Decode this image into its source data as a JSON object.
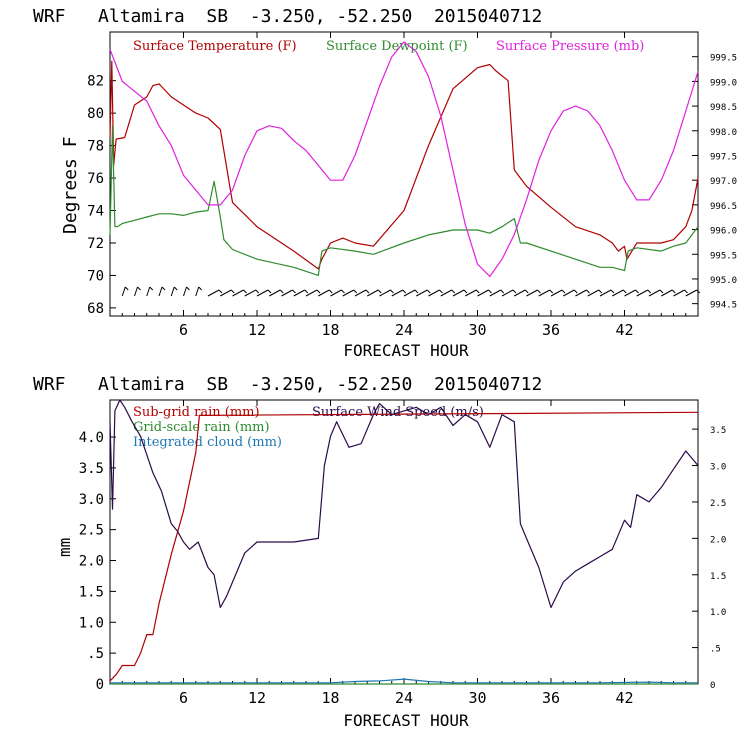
{
  "colors": {
    "temperature": "#b00000",
    "dewpoint": "#2e8b2e",
    "pressure": "#e020e0",
    "subgrid_rain": "#b00000",
    "grid_rain": "#2e8b2e",
    "cloud": "#1f77b4",
    "wind": "#2a0a4a"
  },
  "chart_data": [
    {
      "type": "line",
      "title": "WRF   Altamira  SB  -3.250, -52.250  2015040712",
      "xlabel": "FORECAST HOUR",
      "ylabel": "Degrees F",
      "xlim": [
        0,
        48
      ],
      "ylim": [
        67.5,
        85
      ],
      "xticks": [
        "6",
        "12",
        "18",
        "24",
        "30",
        "36",
        "42"
      ],
      "yticks": [
        "68",
        "70",
        "72",
        "74",
        "76",
        "78",
        "80",
        "82"
      ],
      "y2lim": [
        994.25,
        1000.0
      ],
      "y2ticks": [
        "994.5",
        "995.0",
        "995.5",
        "996.0",
        "996.5",
        "997.0",
        "997.5",
        "998.0",
        "998.5",
        "999.0",
        "999.5"
      ],
      "legend": [
        "Surface Temperature (F)",
        "Surface Dewpoint (F)",
        "Surface Pressure (mb)"
      ],
      "series": [
        {
          "name": "Surface Temperature (F)",
          "axis": "left",
          "x": [
            0,
            0.15,
            0.3,
            0.5,
            1.2,
            2,
            3,
            3.5,
            4,
            5,
            6,
            7,
            8,
            9,
            10,
            12,
            15,
            17,
            17.3,
            18,
            19,
            20,
            21.5,
            24,
            26,
            28,
            30,
            31,
            31.5,
            32.5,
            33,
            33.5,
            34,
            36,
            38,
            40,
            41,
            41.5,
            42,
            42.2,
            43,
            45,
            46,
            47,
            47.5,
            48
          ],
          "values": [
            78.5,
            83.2,
            76.8,
            78.4,
            78.5,
            80.5,
            81.0,
            81.7,
            81.8,
            81.0,
            80.5,
            80.0,
            79.7,
            79.0,
            74.5,
            73.0,
            71.5,
            70.4,
            71.0,
            72.0,
            72.3,
            72.0,
            71.8,
            74.0,
            78.0,
            81.5,
            82.8,
            83.0,
            82.6,
            82.0,
            76.5,
            76.0,
            75.5,
            74.2,
            73.0,
            72.5,
            72.0,
            71.5,
            71.8,
            71.0,
            72.0,
            72.0,
            72.2,
            73.0,
            74.0,
            76.0
          ]
        },
        {
          "name": "Surface Dewpoint (F)",
          "axis": "left",
          "x": [
            0,
            0.2,
            0.4,
            0.6,
            1,
            2,
            3,
            4,
            5,
            6,
            7,
            8,
            8.5,
            9,
            9.3,
            10,
            12,
            15,
            17,
            17.3,
            18,
            20,
            21.5,
            24,
            26,
            28,
            30,
            31,
            32,
            33,
            33.5,
            34,
            36,
            38,
            40,
            41,
            42,
            42.3,
            43,
            45,
            46,
            47,
            48
          ],
          "values": [
            72.5,
            79.2,
            73.0,
            73.0,
            73.2,
            73.4,
            73.6,
            73.8,
            73.8,
            73.7,
            73.9,
            74.0,
            75.8,
            73.6,
            72.2,
            71.6,
            71.0,
            70.5,
            70.0,
            71.5,
            71.7,
            71.5,
            71.3,
            72.0,
            72.5,
            72.8,
            72.8,
            72.6,
            73.0,
            73.5,
            72.0,
            72.0,
            71.5,
            71.0,
            70.5,
            70.5,
            70.3,
            71.5,
            71.7,
            71.5,
            71.8,
            72.0,
            73.0
          ]
        },
        {
          "name": "Surface Pressure (mb)",
          "axis": "right",
          "x": [
            0,
            1,
            2,
            3,
            4,
            5,
            6,
            7,
            8,
            9,
            10,
            11,
            12,
            13,
            14,
            15,
            16,
            17,
            18,
            19,
            20,
            21,
            22,
            23,
            24,
            25,
            26,
            27,
            28,
            29,
            30,
            31,
            32,
            33,
            34,
            35,
            36,
            37,
            38,
            39,
            40,
            41,
            42,
            43,
            44,
            45,
            46,
            47,
            48
          ],
          "values": [
            999.65,
            999.0,
            998.8,
            998.6,
            998.1,
            997.7,
            997.1,
            996.8,
            996.5,
            996.5,
            996.8,
            997.5,
            998.0,
            998.1,
            998.05,
            997.8,
            997.6,
            997.3,
            997.0,
            997.0,
            997.5,
            998.2,
            998.9,
            999.5,
            999.8,
            999.6,
            999.1,
            998.3,
            997.2,
            996.1,
            995.3,
            995.05,
            995.4,
            995.9,
            996.6,
            997.4,
            998.0,
            998.4,
            998.5,
            998.4,
            998.1,
            997.6,
            997.0,
            996.6,
            996.6,
            997.0,
            997.6,
            998.4,
            999.2
          ]
        }
      ]
    },
    {
      "type": "line",
      "title": "WRF   Altamira  SB  -3.250, -52.250  2015040712",
      "xlabel": "FORECAST HOUR",
      "ylabel": "mm",
      "xlim": [
        0,
        48
      ],
      "ylim": [
        0,
        4.6
      ],
      "xticks": [
        "6",
        "12",
        "18",
        "24",
        "30",
        "36",
        "42"
      ],
      "yticks": [
        "0",
        ".5",
        "1.0",
        "1.5",
        "2.0",
        "2.5",
        "3.0",
        "3.5",
        "4.0"
      ],
      "y2lim": [
        0,
        3.9
      ],
      "y2ticks": [
        "0",
        ".5",
        "1.0",
        "1.5",
        "2.0",
        "2.5",
        "3.0",
        "3.5"
      ],
      "legend": [
        "Sub-grid rain (mm)",
        "Grid-scale rain (mm)",
        "Integrated cloud (mm)",
        "Surface Wind Speed (m/s)"
      ],
      "series": [
        {
          "name": "Sub-grid rain (mm)",
          "axis": "left",
          "x": [
            0,
            0.5,
            1,
            2,
            2.5,
            3,
            3.5,
            4,
            5,
            6,
            7,
            7.3,
            48
          ],
          "values": [
            0.05,
            0.15,
            0.3,
            0.3,
            0.5,
            0.8,
            0.8,
            1.3,
            2.1,
            2.8,
            3.75,
            4.35,
            4.4
          ]
        },
        {
          "name": "Grid-scale rain (mm)",
          "axis": "left",
          "x": [
            0,
            48
          ],
          "values": [
            0,
            0
          ]
        },
        {
          "name": "Integrated cloud (mm)",
          "axis": "left",
          "x": [
            0,
            18,
            20,
            22,
            24,
            26,
            28,
            30,
            40,
            44,
            46,
            48
          ],
          "values": [
            0.02,
            0.02,
            0.04,
            0.05,
            0.08,
            0.04,
            0.02,
            0.02,
            0.02,
            0.03,
            0.02,
            0.02
          ]
        },
        {
          "name": "Surface Wind Speed (m/s)",
          "axis": "right",
          "x": [
            0,
            0.2,
            0.4,
            0.8,
            1.2,
            1.8,
            2.5,
            3.5,
            4.2,
            5,
            5.5,
            6,
            6.5,
            7.2,
            8,
            8.5,
            9,
            9.5,
            11,
            12,
            15,
            17,
            17.5,
            18,
            18.5,
            19.5,
            20.5,
            21.5,
            22,
            23,
            24,
            25,
            26,
            27,
            28,
            29,
            30,
            31,
            32,
            33,
            33.5,
            34,
            35,
            36,
            37,
            38,
            39,
            40,
            41,
            42,
            42.5,
            43,
            44,
            45,
            46,
            47,
            48
          ],
          "values": [
            3.6,
            2.4,
            3.75,
            3.9,
            3.8,
            3.6,
            3.4,
            2.9,
            2.65,
            2.2,
            2.1,
            1.95,
            1.85,
            1.95,
            1.6,
            1.5,
            1.05,
            1.2,
            1.8,
            1.95,
            1.95,
            2.0,
            3.0,
            3.4,
            3.6,
            3.25,
            3.3,
            3.7,
            3.85,
            3.7,
            3.75,
            3.8,
            3.7,
            3.8,
            3.55,
            3.7,
            3.6,
            3.25,
            3.7,
            3.6,
            2.2,
            2.0,
            1.6,
            1.05,
            1.4,
            1.55,
            1.65,
            1.75,
            1.85,
            2.25,
            2.15,
            2.6,
            2.5,
            2.7,
            2.95,
            3.2,
            3.0
          ]
        }
      ]
    }
  ]
}
